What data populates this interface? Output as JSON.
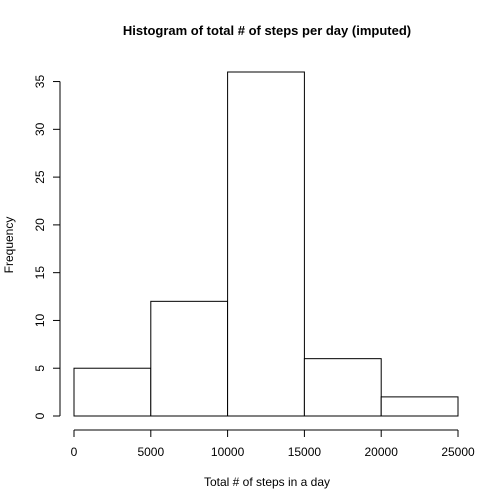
{
  "chart_data": {
    "type": "bar",
    "title": "Histogram of total # of steps per day (imputed)",
    "xlabel": "Total # of steps in a day",
    "ylabel": "Frequency",
    "bins": [
      {
        "from": 0,
        "to": 5000,
        "count": 5
      },
      {
        "from": 5000,
        "to": 10000,
        "count": 12
      },
      {
        "from": 10000,
        "to": 15000,
        "count": 36
      },
      {
        "from": 15000,
        "to": 20000,
        "count": 6
      },
      {
        "from": 20000,
        "to": 25000,
        "count": 2
      }
    ],
    "xlim": [
      0,
      25000
    ],
    "ylim": [
      0,
      36
    ],
    "x_ticks": [
      "0",
      "5000",
      "10000",
      "15000",
      "20000",
      "25000"
    ],
    "y_ticks": [
      "0",
      "5",
      "10",
      "15",
      "20",
      "25",
      "30",
      "35"
    ],
    "grid": false,
    "bar_fill": "#ffffff",
    "bar_stroke": "#000000"
  }
}
